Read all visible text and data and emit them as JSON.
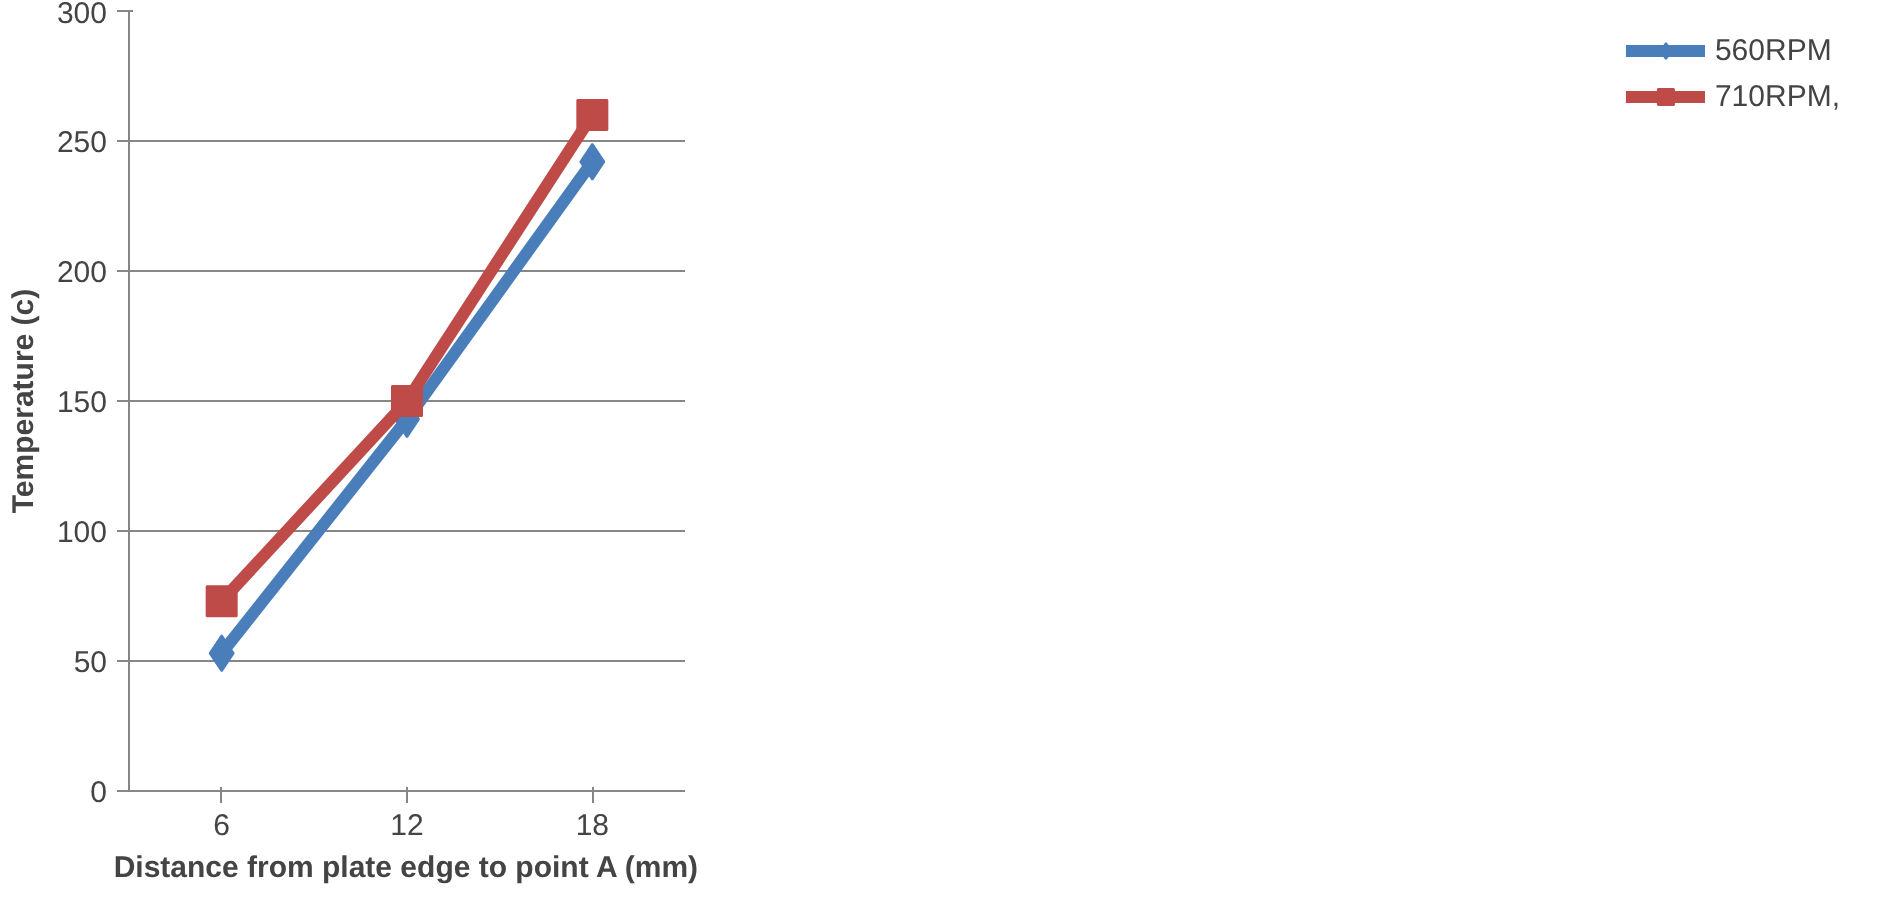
{
  "chart_data": {
    "type": "line",
    "xlabel": "Distance from plate edge to point A (mm)",
    "ylabel": "Temperature (c)",
    "categories": [
      "6",
      "12",
      "18"
    ],
    "series": [
      {
        "name": "560RPM",
        "color": "#4a7ebb",
        "marker": "diamond",
        "values": [
          53,
          143,
          242
        ]
      },
      {
        "name": "710RPM,",
        "color": "#be4b48",
        "marker": "square",
        "values": [
          73,
          150,
          260
        ]
      }
    ],
    "ylim": [
      0,
      300
    ],
    "yticks": [
      0,
      50,
      100,
      150,
      200,
      250,
      300
    ],
    "grid": "y",
    "legend": "right"
  }
}
